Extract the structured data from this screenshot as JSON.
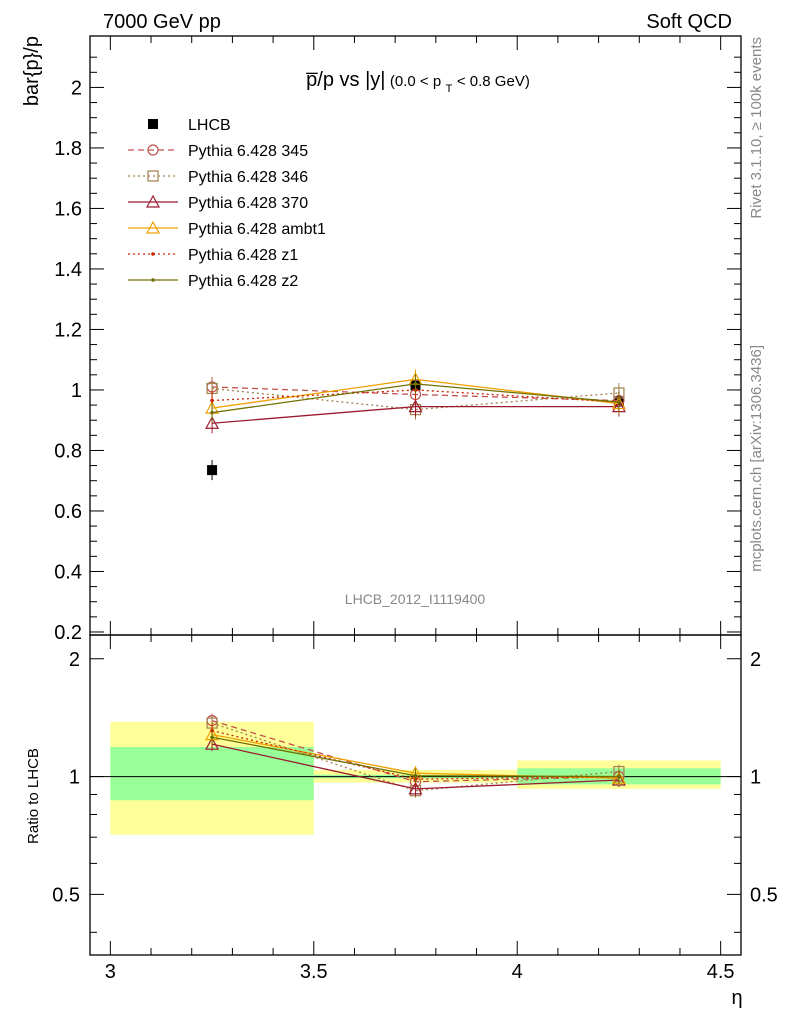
{
  "header": {
    "left": "7000 GeV pp",
    "right": "Soft QCD"
  },
  "side": {
    "rivet": "Rivet 3.1.10, ≥ 100k events",
    "mcplots": "mcplots.cern.ch [arXiv:1306.3436]"
  },
  "watermark": "LHCB_2012_I1119400",
  "title": {
    "main": "p̅/p vs |y|",
    "cut_prefix": "(0.0 < p",
    "cut_sub": "T",
    "cut_suffix": " < 0.8 GeV)"
  },
  "chart_data": {
    "type": "line",
    "x": [
      3.25,
      3.75,
      4.25
    ],
    "xlabel": "η",
    "ylabel": "bar{p}/p",
    "xlim": [
      2.95,
      4.55
    ],
    "ylim": [
      0.19,
      2.17
    ],
    "x_ticks": [
      "3",
      "3.5",
      "4",
      "4.5"
    ],
    "y_ticks": [
      "0.2",
      "0.4",
      "0.6",
      "0.8",
      "1",
      "1.2",
      "1.4",
      "1.6",
      "1.8",
      "2"
    ],
    "bins": [
      [
        3.0,
        3.5
      ],
      [
        3.5,
        4.0
      ],
      [
        4.0,
        4.5
      ]
    ],
    "series": [
      {
        "name": "LHCB",
        "values": [
          0.735,
          1.015,
          0.962
        ],
        "color": "#000000",
        "marker": "square-filled",
        "dash": "none"
      },
      {
        "name": "Pythia 6.428 345",
        "values": [
          1.01,
          0.985,
          0.965
        ],
        "color": "#c0504d",
        "marker": "circle-open",
        "dash": "dashed"
      },
      {
        "name": "Pythia 6.428 346",
        "values": [
          1.005,
          0.935,
          0.99
        ],
        "color": "#a0804a",
        "marker": "square-open",
        "dash": "dotted"
      },
      {
        "name": "Pythia 6.428 370",
        "values": [
          0.89,
          0.945,
          0.945
        ],
        "color": "#9b1b30",
        "marker": "triangle-open",
        "dash": "none"
      },
      {
        "name": "Pythia 6.428 ambt1",
        "values": [
          0.94,
          1.035,
          0.955
        ],
        "color": "#f0a000",
        "marker": "triangle-open",
        "dash": "none"
      },
      {
        "name": "Pythia 6.428 z1",
        "values": [
          0.965,
          1.0,
          0.96
        ],
        "color": "#cc2200",
        "marker": "dot",
        "dash": "dotted"
      },
      {
        "name": "Pythia 6.428 z2",
        "values": [
          0.925,
          1.02,
          0.96
        ],
        "color": "#707000",
        "marker": "dot",
        "dash": "none"
      }
    ],
    "ratio": {
      "ylabel": "Ratio to LHCB",
      "ylim": [
        0.35,
        2.3
      ],
      "log_scale": true,
      "y_ticks": [
        "0.5",
        "1",
        "2"
      ],
      "band_inner": [
        [
          0.87,
          1.19
        ],
        [
          0.99,
          1.01
        ],
        [
          0.955,
          1.05
        ]
      ],
      "band_outer": [
        [
          0.71,
          1.38
        ],
        [
          0.965,
          1.04
        ],
        [
          0.93,
          1.1
        ]
      ],
      "series": [
        {
          "name": "Pythia 6.428 345",
          "values": [
            1.39,
            0.97,
            1.0
          ]
        },
        {
          "name": "Pythia 6.428 346",
          "values": [
            1.37,
            0.92,
            1.03
          ]
        },
        {
          "name": "Pythia 6.428 370",
          "values": [
            1.21,
            0.93,
            0.98
          ]
        },
        {
          "name": "Pythia 6.428 ambt1",
          "values": [
            1.28,
            1.02,
            0.99
          ]
        },
        {
          "name": "Pythia 6.428 z1",
          "values": [
            1.31,
            0.985,
            1.0
          ]
        },
        {
          "name": "Pythia 6.428 z2",
          "values": [
            1.26,
            1.005,
            1.0
          ]
        }
      ]
    },
    "legend_position": "top-left",
    "grid": false,
    "colors": {
      "band_inner": "#99ff99",
      "band_outer": "#ffff99"
    }
  }
}
